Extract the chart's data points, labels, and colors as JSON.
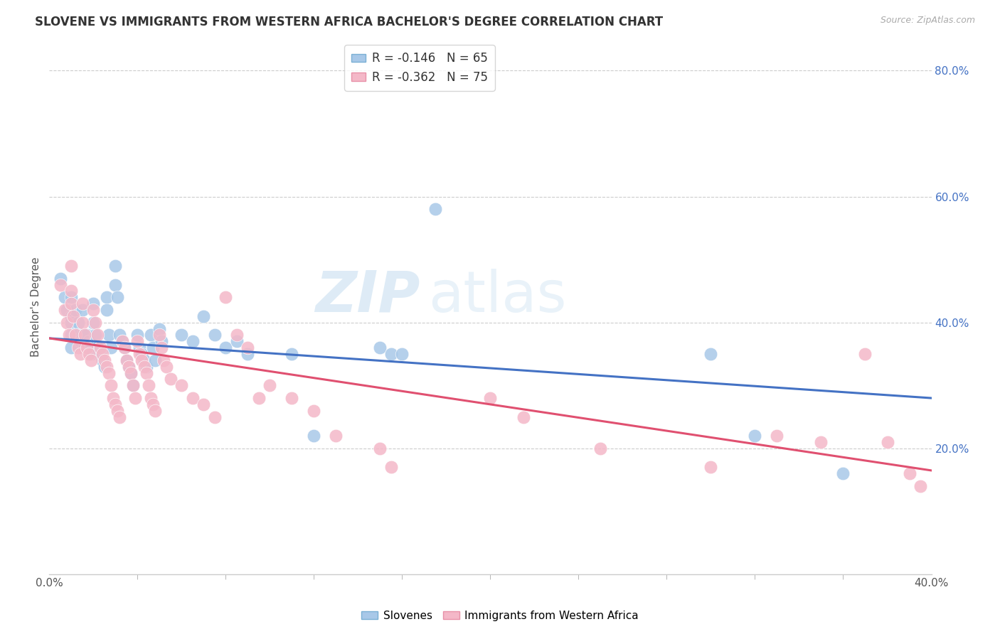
{
  "title": "SLOVENE VS IMMIGRANTS FROM WESTERN AFRICA BACHELOR'S DEGREE CORRELATION CHART",
  "source": "Source: ZipAtlas.com",
  "ylabel": "Bachelor's Degree",
  "xlim": [
    0.0,
    0.4
  ],
  "ylim": [
    0.0,
    0.85
  ],
  "xtick_positions": [
    0.0,
    0.4
  ],
  "xtick_labels": [
    "0.0%",
    "40.0%"
  ],
  "yticks_right": [
    0.2,
    0.4,
    0.6,
    0.8
  ],
  "ytick_labels_right": [
    "20.0%",
    "40.0%",
    "60.0%",
    "80.0%"
  ],
  "legend_labels_bottom": [
    "Slovenes",
    "Immigrants from Western Africa"
  ],
  "blue_color": "#a8c8e8",
  "pink_color": "#f4b8c8",
  "line_blue": "#4472c4",
  "line_pink": "#e05070",
  "watermark": "ZIPatlas",
  "blue_scatter": [
    [
      0.005,
      0.47
    ],
    [
      0.007,
      0.44
    ],
    [
      0.008,
      0.42
    ],
    [
      0.01,
      0.44
    ],
    [
      0.01,
      0.41
    ],
    [
      0.01,
      0.4
    ],
    [
      0.01,
      0.38
    ],
    [
      0.01,
      0.36
    ],
    [
      0.012,
      0.42
    ],
    [
      0.013,
      0.4
    ],
    [
      0.013,
      0.38
    ],
    [
      0.014,
      0.37
    ],
    [
      0.015,
      0.42
    ],
    [
      0.015,
      0.38
    ],
    [
      0.016,
      0.36
    ],
    [
      0.017,
      0.38
    ],
    [
      0.018,
      0.37
    ],
    [
      0.019,
      0.35
    ],
    [
      0.02,
      0.43
    ],
    [
      0.02,
      0.4
    ],
    [
      0.021,
      0.38
    ],
    [
      0.022,
      0.36
    ],
    [
      0.023,
      0.35
    ],
    [
      0.024,
      0.34
    ],
    [
      0.025,
      0.33
    ],
    [
      0.026,
      0.44
    ],
    [
      0.026,
      0.42
    ],
    [
      0.027,
      0.38
    ],
    [
      0.028,
      0.36
    ],
    [
      0.03,
      0.49
    ],
    [
      0.03,
      0.46
    ],
    [
      0.031,
      0.44
    ],
    [
      0.032,
      0.38
    ],
    [
      0.033,
      0.37
    ],
    [
      0.034,
      0.36
    ],
    [
      0.035,
      0.34
    ],
    [
      0.036,
      0.33
    ],
    [
      0.037,
      0.32
    ],
    [
      0.038,
      0.3
    ],
    [
      0.04,
      0.38
    ],
    [
      0.041,
      0.36
    ],
    [
      0.042,
      0.35
    ],
    [
      0.043,
      0.34
    ],
    [
      0.044,
      0.33
    ],
    [
      0.046,
      0.38
    ],
    [
      0.047,
      0.36
    ],
    [
      0.048,
      0.34
    ],
    [
      0.05,
      0.39
    ],
    [
      0.051,
      0.37
    ],
    [
      0.06,
      0.38
    ],
    [
      0.065,
      0.37
    ],
    [
      0.07,
      0.41
    ],
    [
      0.075,
      0.38
    ],
    [
      0.08,
      0.36
    ],
    [
      0.085,
      0.37
    ],
    [
      0.09,
      0.35
    ],
    [
      0.11,
      0.35
    ],
    [
      0.12,
      0.22
    ],
    [
      0.15,
      0.36
    ],
    [
      0.155,
      0.35
    ],
    [
      0.16,
      0.35
    ],
    [
      0.175,
      0.58
    ],
    [
      0.3,
      0.35
    ],
    [
      0.32,
      0.22
    ],
    [
      0.36,
      0.16
    ]
  ],
  "pink_scatter": [
    [
      0.005,
      0.46
    ],
    [
      0.007,
      0.42
    ],
    [
      0.008,
      0.4
    ],
    [
      0.009,
      0.38
    ],
    [
      0.01,
      0.49
    ],
    [
      0.01,
      0.45
    ],
    [
      0.01,
      0.43
    ],
    [
      0.011,
      0.41
    ],
    [
      0.012,
      0.38
    ],
    [
      0.013,
      0.36
    ],
    [
      0.014,
      0.35
    ],
    [
      0.015,
      0.43
    ],
    [
      0.015,
      0.4
    ],
    [
      0.016,
      0.38
    ],
    [
      0.017,
      0.36
    ],
    [
      0.018,
      0.35
    ],
    [
      0.019,
      0.34
    ],
    [
      0.02,
      0.42
    ],
    [
      0.021,
      0.4
    ],
    [
      0.022,
      0.38
    ],
    [
      0.023,
      0.36
    ],
    [
      0.024,
      0.35
    ],
    [
      0.025,
      0.34
    ],
    [
      0.026,
      0.33
    ],
    [
      0.027,
      0.32
    ],
    [
      0.028,
      0.3
    ],
    [
      0.029,
      0.28
    ],
    [
      0.03,
      0.27
    ],
    [
      0.031,
      0.26
    ],
    [
      0.032,
      0.25
    ],
    [
      0.033,
      0.37
    ],
    [
      0.034,
      0.36
    ],
    [
      0.035,
      0.34
    ],
    [
      0.036,
      0.33
    ],
    [
      0.037,
      0.32
    ],
    [
      0.038,
      0.3
    ],
    [
      0.039,
      0.28
    ],
    [
      0.04,
      0.37
    ],
    [
      0.041,
      0.35
    ],
    [
      0.042,
      0.34
    ],
    [
      0.043,
      0.33
    ],
    [
      0.044,
      0.32
    ],
    [
      0.045,
      0.3
    ],
    [
      0.046,
      0.28
    ],
    [
      0.047,
      0.27
    ],
    [
      0.048,
      0.26
    ],
    [
      0.05,
      0.38
    ],
    [
      0.051,
      0.36
    ],
    [
      0.052,
      0.34
    ],
    [
      0.053,
      0.33
    ],
    [
      0.055,
      0.31
    ],
    [
      0.06,
      0.3
    ],
    [
      0.065,
      0.28
    ],
    [
      0.07,
      0.27
    ],
    [
      0.075,
      0.25
    ],
    [
      0.08,
      0.44
    ],
    [
      0.085,
      0.38
    ],
    [
      0.09,
      0.36
    ],
    [
      0.095,
      0.28
    ],
    [
      0.1,
      0.3
    ],
    [
      0.11,
      0.28
    ],
    [
      0.12,
      0.26
    ],
    [
      0.13,
      0.22
    ],
    [
      0.15,
      0.2
    ],
    [
      0.155,
      0.17
    ],
    [
      0.2,
      0.28
    ],
    [
      0.215,
      0.25
    ],
    [
      0.25,
      0.2
    ],
    [
      0.3,
      0.17
    ],
    [
      0.33,
      0.22
    ],
    [
      0.35,
      0.21
    ],
    [
      0.37,
      0.35
    ],
    [
      0.38,
      0.21
    ],
    [
      0.39,
      0.16
    ],
    [
      0.395,
      0.14
    ]
  ],
  "blue_line_x": [
    0.0,
    0.4
  ],
  "blue_line_y": [
    0.375,
    0.28
  ],
  "pink_line_x": [
    0.0,
    0.4
  ],
  "pink_line_y": [
    0.375,
    0.165
  ],
  "background_color": "#ffffff",
  "grid_color": "#cccccc",
  "title_fontsize": 12,
  "axis_label_fontsize": 11,
  "tick_fontsize": 11,
  "right_tick_color": "#4472c4",
  "legend_entry_1": "R = -0.146   N = 65",
  "legend_entry_2": "R = -0.362   N = 75"
}
